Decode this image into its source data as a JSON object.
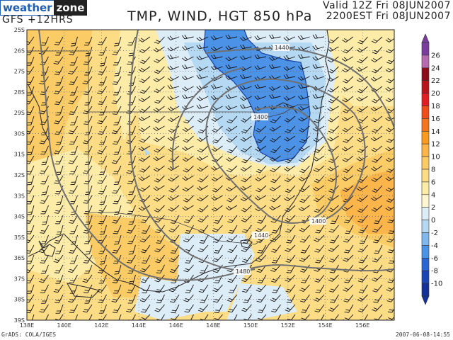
{
  "header": {
    "logo_part1": "weather",
    "logo_part2": "zone",
    "model_run": "GFS  +12HRS",
    "title": "TMP, WIND, HGT 850 hPa",
    "valid_utc": "Valid 12Z Fri 08JUN2007",
    "valid_local": "2200EST Fri 08JUN2007"
  },
  "footer": {
    "credit": "GrADS: COLA/IGES",
    "timestamp": "2007-06-08-14:55"
  },
  "axes": {
    "lat_labels": [
      "25S",
      "26S",
      "27S",
      "28S",
      "29S",
      "30S",
      "31S",
      "32S",
      "33S",
      "34S",
      "35S",
      "36S",
      "37S",
      "38S",
      "39S"
    ],
    "lon_labels": [
      "138E",
      "140E",
      "142E",
      "144E",
      "146E",
      "148E",
      "150E",
      "152E",
      "154E",
      "156E"
    ]
  },
  "contours": {
    "height_labels": [
      "1440",
      "1400",
      "1400",
      "1440",
      "1480"
    ]
  },
  "colorbar": {
    "labels": [
      "26",
      "24",
      "22",
      "20",
      "18",
      "16",
      "14",
      "12",
      "10",
      "8",
      "6",
      "4",
      "2",
      "0",
      "-2",
      "-4",
      "-6",
      "-8",
      "-10"
    ],
    "colors": [
      "#7a3d9e",
      "#b86ab0",
      "#8b0d1a",
      "#b8141c",
      "#e01e24",
      "#ee4e1c",
      "#f5741e",
      "#fa9a20",
      "#fbb54a",
      "#fbcc66",
      "#fddc86",
      "#fdeba8",
      "#fef6d0",
      "#ddedf8",
      "#b5d8f3",
      "#80b8ee",
      "#4c92e6",
      "#2a66d2",
      "#1c46b4",
      "#16309a"
    ]
  },
  "colors": {
    "warm_light": "#fdeba8",
    "warm_mid": "#fddc86",
    "warm_dark": "#fbb54a",
    "cold_light": "#ddedf8",
    "cold_mid": "#b5d8f3",
    "cold_dark": "#4c92e6",
    "contour": "#707070",
    "coast": "#303030"
  }
}
